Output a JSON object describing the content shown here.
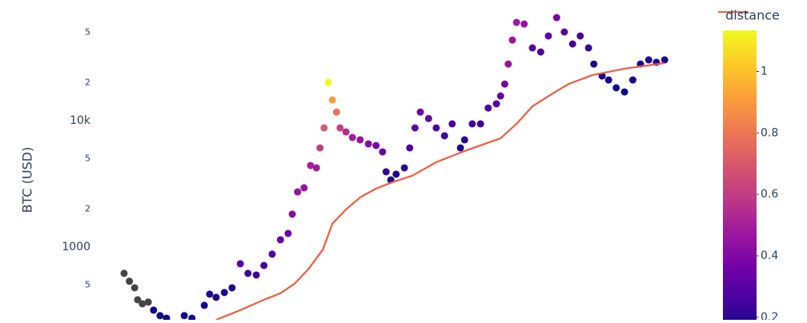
{
  "chart_data": [
    {
      "type": "scatter",
      "y_label": "BTC (USD)",
      "log_y": true,
      "grid": false,
      "xlim": [
        2013.89,
        2024.2
      ],
      "ylim": [
        265,
        90300
      ],
      "yticks": [
        {
          "value": 500,
          "label": "5"
        },
        1000,
        {
          "value": 2000,
          "label": "2"
        },
        {
          "value": 5000,
          "label": "5"
        },
        {
          "value": 10000,
          "label": "10k"
        },
        {
          "value": 20000,
          "label": "2"
        },
        {
          "value": 50000,
          "label": "5"
        }
      ],
      "x": [
        2014.5,
        2014.59,
        2014.68,
        2014.73,
        2014.81,
        2014.91,
        2015.0,
        2015.11,
        2015.22,
        2015.52,
        2015.65,
        2015.86,
        2015.95,
        2016.06,
        2016.2,
        2016.33,
        2016.47,
        2016.6,
        2016.74,
        2016.87,
        2017.01,
        2017.15,
        2017.28,
        2017.35,
        2017.44,
        2017.55,
        2017.66,
        2017.76,
        2017.82,
        2017.89,
        2017.96,
        2018.03,
        2018.1,
        2018.16,
        2018.26,
        2018.37,
        2018.5,
        2018.64,
        2018.77,
        2018.88,
        2018.94,
        2019.02,
        2019.11,
        2019.25,
        2019.34,
        2019.43,
        2019.52,
        2019.66,
        2019.79,
        2019.93,
        2020.06,
        2020.2,
        2020.27,
        2020.4,
        2020.54,
        2020.67,
        2020.81,
        2020.88,
        2020.95,
        2021.01,
        2021.08,
        2021.15,
        2021.28,
        2021.42,
        2021.56,
        2021.69,
        2021.83,
        2021.96,
        2022.1,
        2022.23,
        2022.37,
        2022.46,
        2022.6,
        2022.71,
        2022.84,
        2022.98,
        2023.12,
        2023.25,
        2023.39,
        2023.52,
        2023.66
      ],
      "values": [
        618,
        535,
        475,
        382,
        355,
        366,
        316,
        286,
        273,
        286,
        273,
        345,
        423,
        399,
        436,
        475,
        736,
        618,
        600,
        714,
        877,
        1140,
        1280,
        1820,
        2730,
        2940,
        4420,
        4230,
        6090,
        8770,
        20100,
        14600,
        11700,
        8770,
        8150,
        7360,
        7050,
        6550,
        6360,
        5660,
        3940,
        3400,
        3770,
        4230,
        6090,
        8770,
        11700,
        10400,
        8770,
        7590,
        9440,
        6090,
        7050,
        9440,
        9440,
        12600,
        13600,
        15700,
        19500,
        28100,
        43500,
        60000,
        58300,
        37700,
        35000,
        46900,
        65500,
        50400,
        40500,
        46900,
        37700,
        28100,
        22600,
        21000,
        18200,
        16900,
        21000,
        28100,
        30300,
        29000,
        30300
      ],
      "distance": [
        null,
        null,
        null,
        null,
        null,
        null,
        0.15,
        0.15,
        0.14,
        0.15,
        0.15,
        0.16,
        0.18,
        0.17,
        0.18,
        0.19,
        0.3,
        0.25,
        0.24,
        0.26,
        0.29,
        0.33,
        0.35,
        0.42,
        0.45,
        0.45,
        0.5,
        0.48,
        0.6,
        0.7,
        1.13,
        0.9,
        0.78,
        0.62,
        0.55,
        0.5,
        0.46,
        0.42,
        0.4,
        0.35,
        0.22,
        0.17,
        0.18,
        0.2,
        0.28,
        0.32,
        0.36,
        0.33,
        0.28,
        0.24,
        0.27,
        0.18,
        0.2,
        0.25,
        0.24,
        0.3,
        0.3,
        0.33,
        0.38,
        0.45,
        0.47,
        0.48,
        0.45,
        0.3,
        0.28,
        0.33,
        0.38,
        0.3,
        0.25,
        0.27,
        0.22,
        0.17,
        0.16,
        0.15,
        0.15,
        0.15,
        0.16,
        0.17,
        0.18,
        0.17,
        0.17
      ],
      "null_color": "#444444",
      "colorbar": {
        "title": "distance",
        "clim": [
          0.145,
          1.134
        ],
        "ticks": [
          0.2,
          0.4,
          0.6,
          0.8,
          1
        ]
      }
    },
    {
      "type": "line",
      "color": "#ef5e3c",
      "x": [
        2016.06,
        2016.47,
        2016.87,
        2017.15,
        2017.39,
        2017.62,
        2017.87,
        2018.03,
        2018.26,
        2018.5,
        2018.77,
        2019.05,
        2019.38,
        2019.79,
        2020.27,
        2020.88,
        2021.15,
        2021.42,
        2021.76,
        2022.03,
        2022.44,
        2022.98,
        2023.66
      ],
      "values": [
        265,
        316,
        382,
        430,
        512,
        665,
        957,
        1530,
        1980,
        2470,
        2900,
        3260,
        3660,
        4690,
        5750,
        7260,
        9440,
        13000,
        16400,
        19500,
        23000,
        25800,
        28600
      ]
    }
  ]
}
